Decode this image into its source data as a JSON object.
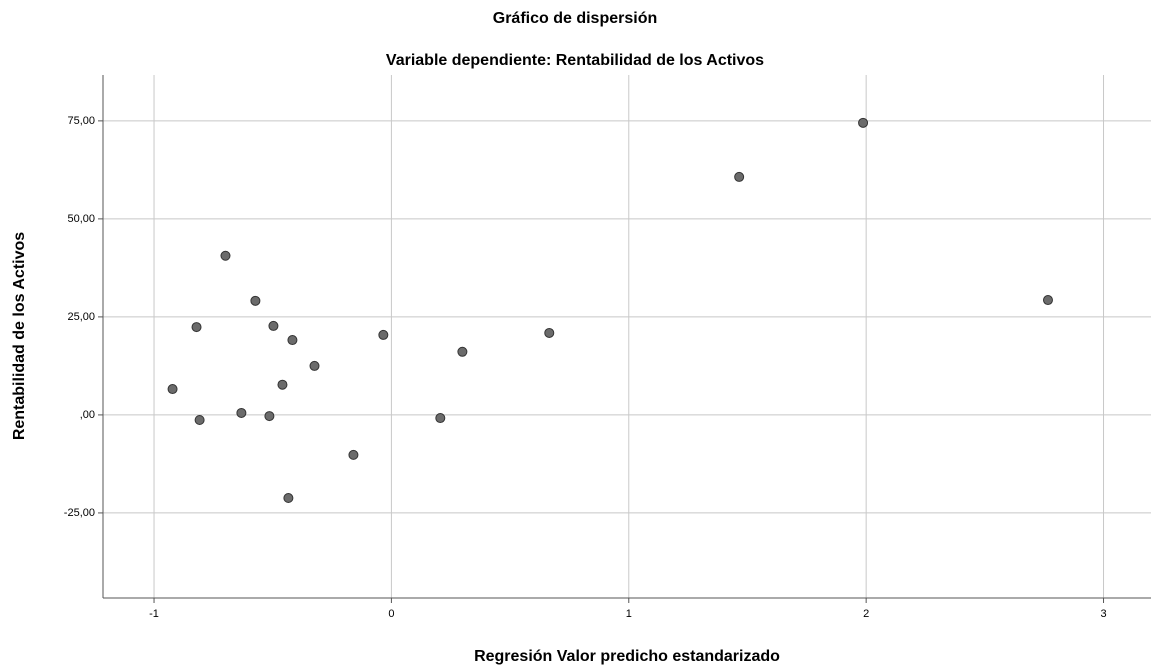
{
  "chart_data": {
    "type": "scatter",
    "title": "Gráfico de dispersión",
    "subtitle": "Variable dependiente: Rentabilidad de los Activos",
    "x_label": "Regresión Valor predicho estandarizado",
    "y_label": "Rentabilidad de los Activos",
    "x": [
      -0.922,
      -0.821,
      -0.808,
      -0.699,
      -0.632,
      -0.573,
      -0.514,
      -0.497,
      -0.459,
      -0.434,
      -0.417,
      -0.324,
      -0.16,
      -0.034,
      0.206,
      0.299,
      0.665,
      1.465,
      1.987,
      2.766
    ],
    "values": [
      6.6,
      22.4,
      -1.3,
      40.6,
      0.5,
      29.1,
      -0.3,
      22.7,
      7.7,
      -21.2,
      19.1,
      12.5,
      -10.2,
      20.4,
      -0.8,
      16.1,
      20.9,
      60.7,
      74.5,
      29.3
    ],
    "color": "#6b6b6b",
    "xlim": [
      -1.215,
      3.2
    ],
    "xticks": [
      -1,
      0,
      1,
      2,
      3
    ],
    "ylim": [
      -46.7,
      86.7
    ],
    "yticks": [
      {
        "value": -25,
        "label": "-25,00"
      },
      {
        "value": 0,
        "label": ",00"
      },
      {
        "value": 25,
        "label": "25,00"
      },
      {
        "value": 50,
        "label": "50,00"
      },
      {
        "value": 75,
        "label": "75,00"
      }
    ],
    "grid": true
  }
}
